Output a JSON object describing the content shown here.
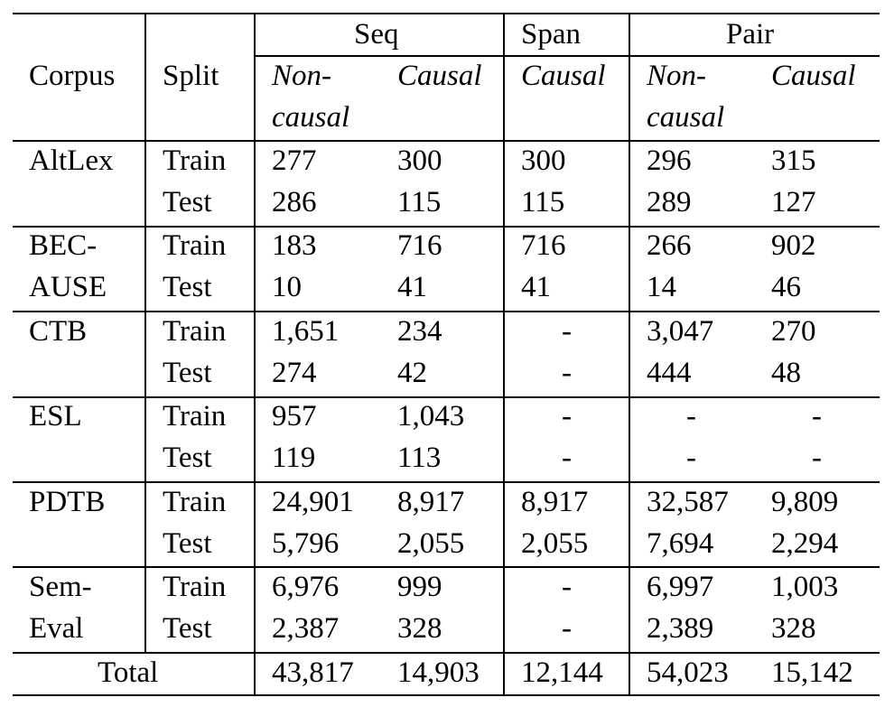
{
  "header": {
    "corpus": "Corpus",
    "split": "Split",
    "group_seq": "Seq",
    "group_span": "Span",
    "group_pair": "Pair",
    "seq_noncausal_1": "Non-",
    "seq_noncausal_2": "causal",
    "seq_causal": "Causal",
    "span_causal": "Causal",
    "pair_noncausal_1": "Non-",
    "pair_noncausal_2": "causal",
    "pair_causal": "Causal"
  },
  "rows": [
    {
      "corpus_1": "AltLex",
      "corpus_2": "",
      "train": {
        "split": "Train",
        "seq_nc": "277",
        "seq_c": "300",
        "span_c": "300",
        "pair_nc": "296",
        "pair_c": "315"
      },
      "test": {
        "split": "Test",
        "seq_nc": "286",
        "seq_c": "115",
        "span_c": "115",
        "pair_nc": "289",
        "pair_c": "127"
      }
    },
    {
      "corpus_1": "BEC-",
      "corpus_2": "AUSE",
      "train": {
        "split": "Train",
        "seq_nc": "183",
        "seq_c": "716",
        "span_c": "716",
        "pair_nc": "266",
        "pair_c": "902"
      },
      "test": {
        "split": "Test",
        "seq_nc": "10",
        "seq_c": "41",
        "span_c": "41",
        "pair_nc": "14",
        "pair_c": "46"
      }
    },
    {
      "corpus_1": "CTB",
      "corpus_2": "",
      "train": {
        "split": "Train",
        "seq_nc": "1,651",
        "seq_c": "234",
        "span_c": "-",
        "pair_nc": "3,047",
        "pair_c": "270"
      },
      "test": {
        "split": "Test",
        "seq_nc": "274",
        "seq_c": "42",
        "span_c": "-",
        "pair_nc": "444",
        "pair_c": "48"
      }
    },
    {
      "corpus_1": "ESL",
      "corpus_2": "",
      "train": {
        "split": "Train",
        "seq_nc": "957",
        "seq_c": "1,043",
        "span_c": "-",
        "pair_nc": "-",
        "pair_c": "-"
      },
      "test": {
        "split": "Test",
        "seq_nc": "119",
        "seq_c": "113",
        "span_c": "-",
        "pair_nc": "-",
        "pair_c": "-"
      }
    },
    {
      "corpus_1": "PDTB",
      "corpus_2": "",
      "train": {
        "split": "Train",
        "seq_nc": "24,901",
        "seq_c": "8,917",
        "span_c": "8,917",
        "pair_nc": "32,587",
        "pair_c": "9,809"
      },
      "test": {
        "split": "Test",
        "seq_nc": "5,796",
        "seq_c": "2,055",
        "span_c": "2,055",
        "pair_nc": "7,694",
        "pair_c": "2,294"
      }
    },
    {
      "corpus_1": "Sem-",
      "corpus_2": "Eval",
      "train": {
        "split": "Train",
        "seq_nc": "6,976",
        "seq_c": "999",
        "span_c": "-",
        "pair_nc": "6,997",
        "pair_c": "1,003"
      },
      "test": {
        "split": "Test",
        "seq_nc": "2,387",
        "seq_c": "328",
        "span_c": "-",
        "pair_nc": "2,389",
        "pair_c": "328"
      }
    }
  ],
  "total": {
    "label": "Total",
    "seq_nc": "43,817",
    "seq_c": "14,903",
    "span_c": "12,144",
    "pair_nc": "54,023",
    "pair_c": "15,142"
  }
}
